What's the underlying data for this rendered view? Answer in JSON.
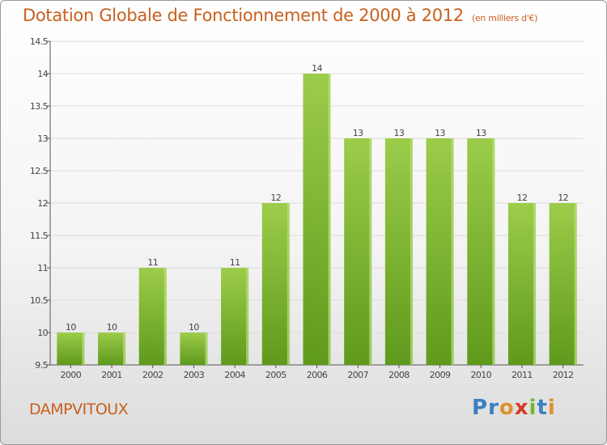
{
  "header": {
    "title": "Dotation Globale de Fonctionnement de 2000 à 2012",
    "subtitle": "(en milliers d'€)"
  },
  "footer": {
    "commune": "DAMPVITOUX",
    "logo": "Proxiti",
    "logo_letters": [
      {
        "ch": "P",
        "color": "#3b7fc4"
      },
      {
        "ch": "r",
        "color": "#3b7fc4"
      },
      {
        "ch": "o",
        "color": "#e0902a"
      },
      {
        "ch": "x",
        "color": "#d63a2a"
      },
      {
        "ch": "i",
        "color": "#7ab530"
      },
      {
        "ch": "t",
        "color": "#3b7fc4"
      },
      {
        "ch": "i",
        "color": "#e0902a"
      }
    ]
  },
  "chart_data": {
    "type": "bar",
    "categories": [
      "2000",
      "2001",
      "2002",
      "2003",
      "2004",
      "2005",
      "2006",
      "2007",
      "2008",
      "2009",
      "2010",
      "2011",
      "2012"
    ],
    "values": [
      10,
      10,
      11,
      10,
      11,
      12,
      14,
      13,
      13,
      13,
      13,
      12,
      12
    ],
    "data_labels": [
      "10",
      "10",
      "11",
      "10",
      "11",
      "12",
      "14",
      "13",
      "13",
      "13",
      "13",
      "12",
      "12"
    ],
    "ylim": [
      9.5,
      14.5
    ],
    "yticks": [
      "9.5",
      "10",
      "10.5",
      "11",
      "11.5",
      "12",
      "12.5",
      "13",
      "13.5",
      "14",
      "14.5"
    ],
    "xlabel": "",
    "ylabel": "",
    "grid": true,
    "bar_color_top": "#9ccc4a",
    "bar_color_bottom": "#5f9a1c",
    "grid_color": "#dcdcdc"
  }
}
